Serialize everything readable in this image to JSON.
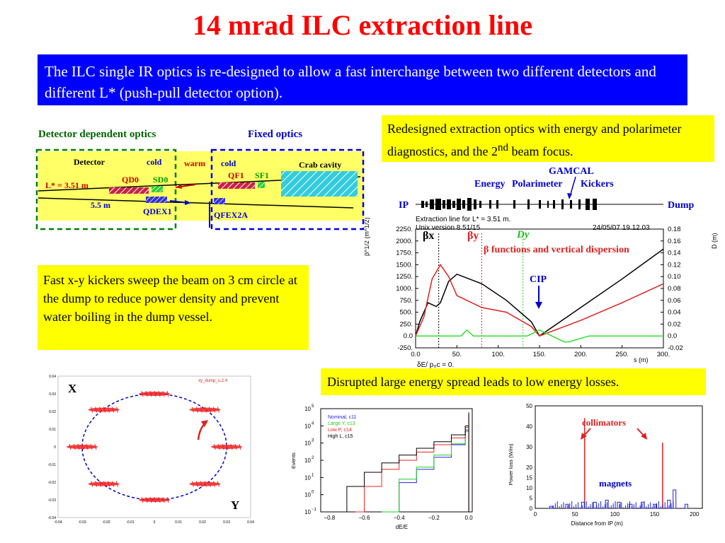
{
  "title": "14 mrad ILC extraction line",
  "intro": "The ILC single IR optics is re-designed to allow a fast interchange between two different detectors and different L* (push-pull detector option).",
  "notes": {
    "redesign_text": "Redesigned extraction optics with energy and polarimeter diagnostics, and the 2",
    "redesign_sup": "nd",
    "redesign_tail": " beam focus.",
    "kickers": "Fast x-y kickers sweep the beam on 3 cm circle at the dump to reduce power density and prevent water boiling in the dump vessel.",
    "losses": "Disrupted large energy spread leads to low energy losses."
  },
  "layout_diagram": {
    "label_detector_optics": "Detector dependent optics",
    "label_fixed_optics": "Fixed optics",
    "detector": "Detector",
    "cold_left": "cold",
    "warm": "warm",
    "cold_right": "cold",
    "crab_cavity": "Crab cavity",
    "qd0": "QD0",
    "sd0": "SD0",
    "qf1": "QF1",
    "sf1": "SF1",
    "lstar": "L* = 3.51 m",
    "dist": "5.5 m",
    "qdex1": "QDEX1",
    "qfex2a": "QFEX2A",
    "colors": {
      "green_dash": "#008000",
      "blue_dash": "#0000dd",
      "region_fill": "#ffff66",
      "magnet_red": "#cc2244",
      "crab_fill": "#33ccdd"
    }
  },
  "beamline": {
    "ip": "IP",
    "dump": "Dump",
    "energy": "Energy",
    "polarimeter": "Polarimeter",
    "gamcal": "GAMCAL",
    "kickers": "Kickers",
    "caption1": "Extraction line for L* = 3.51 m.",
    "caption2": "Unix version 8.51/15",
    "date": "24/05/07  19.12.03"
  },
  "optics_plot": {
    "beta_x": "βx",
    "beta_y": "βy",
    "disp": "Dy",
    "annotation": "β functions and vertical dispersion",
    "cip": "CIP",
    "left_axis_label": "β^1/2 (m^1/2)",
    "right_axis_label": "D (m)",
    "x_axis_label": "s (m)",
    "footer": "δE/ p₀c  =  0.",
    "left_ticks": [
      "2250.",
      "2000.",
      "1750.",
      "1500.",
      "1250.",
      "1000.",
      "750.",
      "500.",
      "250.",
      "0.0",
      "-250."
    ],
    "right_ticks": [
      "0.18",
      "0.16",
      "0.14",
      "0.12",
      "0.10",
      "0.08",
      "0.06",
      "0.04",
      "0.02",
      "0.0",
      "-0.02"
    ],
    "x_ticks": [
      "0.0",
      "50.",
      "100.",
      "150.",
      "200.",
      "250.",
      "300."
    ]
  },
  "chart_data": [
    {
      "type": "line",
      "title": "β functions and vertical dispersion",
      "xlabel": "s (m)",
      "ylabel": "β^1/2 (m^1/2)",
      "ylabel_right": "D (m)",
      "xlim": [
        0,
        300
      ],
      "ylim": [
        -250,
        2250
      ],
      "ylim_right": [
        -0.02,
        0.18
      ],
      "series": [
        {
          "name": "βx",
          "color": "#000000",
          "x": [
            0,
            5,
            15,
            25,
            30,
            40,
            50,
            80,
            110,
            140,
            150,
            200,
            250,
            300
          ],
          "y": [
            0,
            300,
            700,
            620,
            700,
            1150,
            1300,
            1100,
            750,
            300,
            0,
            600,
            1200,
            1830
          ]
        },
        {
          "name": "βy",
          "color": "#dd2222",
          "x": [
            0,
            10,
            20,
            30,
            40,
            50,
            80,
            110,
            140,
            150,
            200,
            250,
            300
          ],
          "y": [
            0,
            400,
            1200,
            1500,
            1250,
            850,
            600,
            500,
            200,
            0,
            330,
            700,
            1100
          ]
        },
        {
          "name": "Dy",
          "color": "#33dd33",
          "x": [
            0,
            55,
            62,
            70,
            120,
            135,
            150,
            165,
            180,
            185,
            210,
            300
          ],
          "y": [
            0.0,
            0.0,
            0.01,
            0.0,
            0.0,
            0.0,
            0.01,
            0.0,
            -0.01,
            -0.01,
            0.0,
            0.0
          ]
        }
      ]
    },
    {
      "type": "scatter",
      "title": "xy_dump_u.2.4",
      "xlim": [
        -0.04,
        0.04
      ],
      "ylim": [
        -0.04,
        0.04
      ],
      "x_ticks": [
        "-0.04",
        "-0.03",
        "-0.02",
        "-0.01",
        "0",
        "0.01",
        "0.02",
        "0.03",
        "0.04"
      ],
      "y_ticks": [
        "0.04",
        "0.03",
        "0.02",
        "0.01",
        "0",
        "-0.01",
        "-0.02",
        "-0.03",
        "-0.04"
      ],
      "axis_x_label": "X",
      "axis_y_label": "Y",
      "series": [
        {
          "name": "xy_dump_u.2.4",
          "x": [
            0.0,
            0.021,
            0.03,
            0.021,
            0.0,
            -0.021,
            -0.03,
            -0.021
          ],
          "y": [
            0.03,
            0.021,
            0.0,
            -0.021,
            -0.03,
            -0.021,
            0.0,
            0.021
          ]
        }
      ]
    },
    {
      "type": "line",
      "xlabel": "dE/E",
      "ylabel": "Events",
      "log_y": true,
      "xlim": [
        -0.85,
        0.02
      ],
      "x_ticks": [
        "−0.8",
        "−0.6",
        "−0.4",
        "−0.2",
        "0.0"
      ],
      "y_ticks": [
        "10^5",
        "10^4",
        "10^3",
        "10^2",
        "10^1",
        "10^0",
        "10^−1"
      ],
      "series": [
        {
          "name": "Nominal, c11",
          "color": "#2222ee",
          "x": [
            -0.45,
            -0.4,
            -0.3,
            -0.2,
            -0.1,
            -0.02,
            0.0
          ],
          "y": [
            0.1,
            5,
            30,
            150,
            800,
            5000,
            40000
          ]
        },
        {
          "name": "Large Y, c13",
          "color": "#22cc22",
          "x": [
            -0.5,
            -0.4,
            -0.3,
            -0.2,
            -0.1,
            -0.02,
            0.0
          ],
          "y": [
            0.1,
            8,
            40,
            200,
            900,
            6000,
            50000
          ]
        },
        {
          "name": "Low P, c14",
          "color": "#ee2222",
          "x": [
            -0.65,
            -0.6,
            -0.5,
            -0.4,
            -0.3,
            -0.2,
            -0.1,
            -0.02,
            0.0
          ],
          "y": [
            0.1,
            3,
            30,
            100,
            300,
            800,
            2000,
            8000,
            60000
          ]
        },
        {
          "name": "High L, c15",
          "color": "#000000",
          "x": [
            -0.8,
            -0.7,
            -0.6,
            -0.5,
            -0.4,
            -0.3,
            -0.2,
            -0.1,
            -0.02,
            0.0
          ],
          "y": [
            0.1,
            3,
            20,
            70,
            200,
            500,
            1200,
            3000,
            10000,
            60000
          ]
        }
      ]
    },
    {
      "type": "bar",
      "xlabel": "Distance from IP (m)",
      "ylabel": "Power loss (W/m)",
      "xlim": [
        0,
        210
      ],
      "ylim": [
        0,
        50
      ],
      "x_ticks": [
        "0",
        "50",
        "100",
        "150",
        "200"
      ],
      "y_ticks": [
        "50",
        "40",
        "30",
        "20",
        "15",
        "10",
        "5",
        "0"
      ],
      "annotations": [
        "collimators",
        "magnets"
      ],
      "series": [
        {
          "name": "collimators",
          "color": "#dd2222",
          "x": [
            62,
            160
          ],
          "y": [
            44,
            32
          ]
        },
        {
          "name": "magnets",
          "color": "#2222cc",
          "x": [
            20,
            40,
            60,
            75,
            90,
            105,
            120,
            135,
            150,
            168,
            175,
            190
          ],
          "y": [
            1,
            2,
            3,
            3,
            4,
            3,
            2,
            3,
            2,
            4,
            9,
            2
          ]
        }
      ]
    }
  ],
  "dump_plot": {
    "legend": "xy_dump_u.2.4",
    "x_label": "X",
    "y_label": "Y",
    "x_ticks": [
      "-0.04",
      "-0.03",
      "-0.02",
      "-0.01",
      "0",
      "0.01",
      "0.02",
      "0.03",
      "0.04"
    ],
    "y_ticks": [
      "0.04",
      "0.03",
      "0.02",
      "0.01",
      "0",
      "-0.01",
      "-0.02",
      "-0.03",
      "-0.04"
    ]
  },
  "events_plot": {
    "legend": [
      "Nominal, c11",
      "Large Y, c13",
      "Low P, c14",
      "High L, c15"
    ],
    "y_ticks": [
      "10",
      "10",
      "10",
      "10",
      "10",
      "10",
      "10"
    ],
    "y_exp": [
      "5",
      "4",
      "3",
      "2",
      "1",
      "0",
      "−1"
    ],
    "x_ticks": [
      "−0.8",
      "−0.6",
      "−0.4",
      "−0.2",
      "0.0"
    ],
    "y_label": "Events",
    "x_label": "dE/E"
  },
  "loss_plot": {
    "collimators": "collimators",
    "magnets": "magnets",
    "y_label": "Power loss (W/m)",
    "x_label": "Distance from IP (m)",
    "y_ticks": [
      "50",
      "40",
      "30",
      "20",
      "15",
      "10",
      "5",
      "0"
    ],
    "x_ticks": [
      "0",
      "50",
      "100",
      "150",
      "200"
    ]
  }
}
